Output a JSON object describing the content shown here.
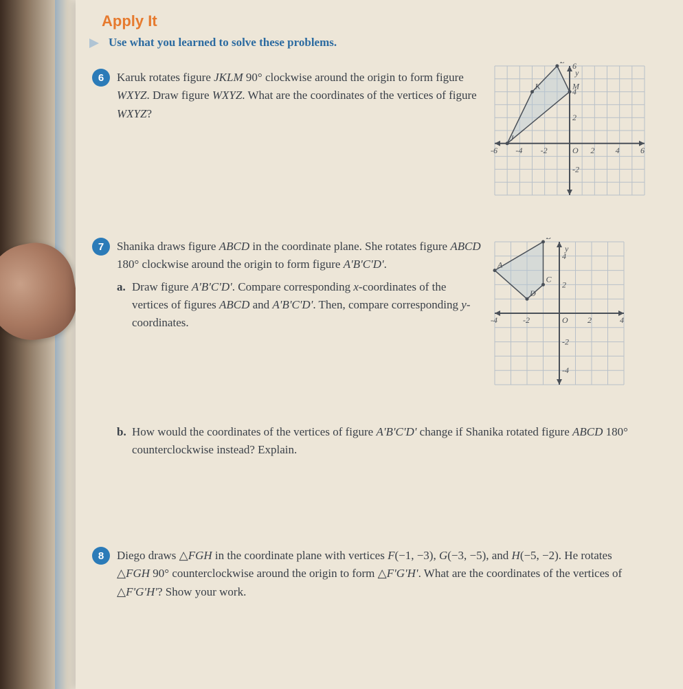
{
  "section_title": "Apply It",
  "instructions": "Use what you learned to solve these problems.",
  "p6": {
    "num": "6",
    "text_parts": [
      "Karuk rotates figure ",
      "JKLM",
      " 90° clockwise around the origin to form figure ",
      "WXYZ",
      ". Draw figure ",
      "WXYZ",
      ". What are the coordinates of the vertices of figure ",
      "WXYZ",
      "?"
    ],
    "graph": {
      "xmin": -6,
      "xmax": 6,
      "ymin": -4,
      "ymax": 6,
      "xticks": [
        -6,
        -4,
        -2,
        0,
        2,
        4,
        6
      ],
      "yticks": [
        -2,
        2,
        4,
        6
      ],
      "points": {
        "J": [
          -5,
          0
        ],
        "K": [
          -3,
          4
        ],
        "L": [
          -1,
          6
        ],
        "M": [
          0,
          4
        ]
      },
      "poly": [
        [
          -5,
          0
        ],
        [
          -3,
          4
        ],
        [
          -1,
          6
        ],
        [
          0,
          4
        ]
      ],
      "axis_label_y": "y"
    }
  },
  "p7": {
    "num": "7",
    "intro_parts": [
      "Shanika draws figure ",
      "ABCD",
      " in the coordinate plane. She rotates figure ",
      "ABCD",
      " 180° clockwise around the origin to form figure ",
      "A'B'C'D'",
      "."
    ],
    "a_parts": [
      "Draw figure ",
      "A'B'C'D'",
      ". Compare corresponding ",
      "x",
      "-coordinates of the vertices of figures ",
      "ABCD",
      " and ",
      "A'B'C'D'",
      ". Then, compare corresponding ",
      "y",
      "-coordinates."
    ],
    "a_letter": "a.",
    "b_parts": [
      "How would the coordinates of the vertices of figure ",
      "A'B'C'D'",
      " change if Shanika rotated figure ",
      "ABCD",
      " 180° counterclockwise instead? Explain."
    ],
    "b_letter": "b.",
    "graph": {
      "xmin": -4,
      "xmax": 4,
      "ymin": -5,
      "ymax": 5,
      "xticks": [
        -4,
        -2,
        0,
        2,
        4
      ],
      "yticks": [
        -4,
        -2,
        2,
        4
      ],
      "points": {
        "A": [
          -4,
          3
        ],
        "B": [
          -1,
          5
        ],
        "C": [
          -1,
          2
        ],
        "D": [
          -2,
          1
        ]
      },
      "poly": [
        [
          -4,
          3
        ],
        [
          -1,
          5
        ],
        [
          -1,
          2
        ],
        [
          -2,
          1
        ]
      ],
      "axis_label_y": "y"
    }
  },
  "p8": {
    "num": "8",
    "text_parts": [
      "Diego draws △",
      "FGH",
      " in the coordinate plane with vertices ",
      "F",
      "(−1, −3), ",
      "G",
      "(−3, −5), and ",
      "H",
      "(−5, −2). He rotates △",
      "FGH",
      " 90° counterclockwise around the origin to form △",
      "F'G'H'",
      ". What are the coordinates of the vertices of △",
      "F'G'H'",
      "? Show your work."
    ]
  }
}
